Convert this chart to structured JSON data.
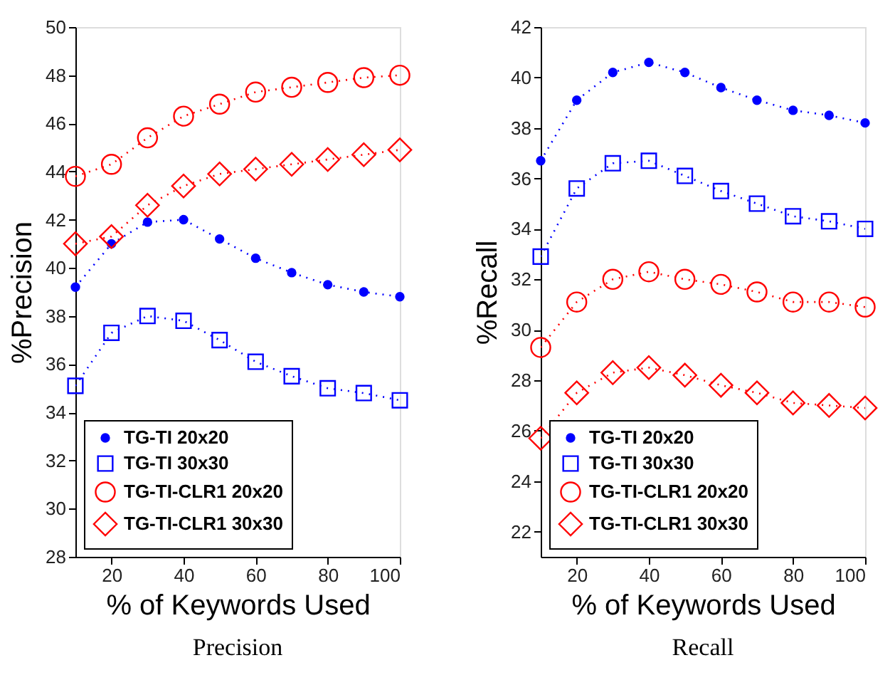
{
  "chart_data": [
    {
      "type": "line",
      "title": "Precision",
      "xlabel": "% of Keywords Used",
      "ylabel": "%Precision",
      "x": [
        10,
        20,
        30,
        40,
        50,
        60,
        70,
        80,
        90,
        100
      ],
      "xlim": [
        10,
        100
      ],
      "xticks": [
        20,
        40,
        60,
        80,
        100
      ],
      "ylim": [
        28,
        50
      ],
      "yticks": [
        28,
        30,
        32,
        34,
        36,
        38,
        40,
        42,
        44,
        46,
        48,
        50
      ],
      "grid": false,
      "legend": "bottom left",
      "line_style": "dotted",
      "series": [
        {
          "name": "TG-TI 20x20",
          "color": "#0000ff",
          "marker": "circle",
          "values": [
            39.2,
            41.0,
            41.9,
            42.0,
            41.2,
            40.4,
            39.8,
            39.3,
            39.0,
            38.8
          ]
        },
        {
          "name": "TG-TI 30x30",
          "color": "#0000ff",
          "marker": "square",
          "values": [
            35.1,
            37.3,
            38.0,
            37.8,
            37.0,
            36.1,
            35.5,
            35.0,
            34.8,
            34.5
          ]
        },
        {
          "name": "TG-TI-CLR1 20x20",
          "color": "#ff0000",
          "marker": "circle",
          "values": [
            43.8,
            44.3,
            45.4,
            46.3,
            46.8,
            47.3,
            47.5,
            47.7,
            47.9,
            48.0
          ]
        },
        {
          "name": "TG-TI-CLR1 30x30",
          "color": "#ff0000",
          "marker": "diamond",
          "values": [
            41.0,
            41.3,
            42.6,
            43.4,
            43.9,
            44.1,
            44.3,
            44.5,
            44.7,
            44.9
          ]
        }
      ]
    },
    {
      "type": "line",
      "title": "Recall",
      "xlabel": "% of Keywords Used",
      "ylabel": "%Recall",
      "x": [
        10,
        20,
        30,
        40,
        50,
        60,
        70,
        80,
        90,
        100
      ],
      "xlim": [
        10,
        100
      ],
      "xticks": [
        20,
        40,
        60,
        80,
        100
      ],
      "ylim": [
        21,
        42
      ],
      "yticks": [
        22,
        24,
        26,
        28,
        30,
        32,
        34,
        36,
        38,
        40,
        42
      ],
      "grid": false,
      "legend": "bottom left",
      "line_style": "dotted",
      "series": [
        {
          "name": "TG-TI 20x20",
          "color": "#0000ff",
          "marker": "circle",
          "values": [
            36.7,
            39.1,
            40.2,
            40.6,
            40.2,
            39.6,
            39.1,
            38.7,
            38.5,
            38.2
          ]
        },
        {
          "name": "TG-TI 30x30",
          "color": "#0000ff",
          "marker": "square",
          "values": [
            32.9,
            35.6,
            36.6,
            36.7,
            36.1,
            35.5,
            35.0,
            34.5,
            34.3,
            34.0
          ]
        },
        {
          "name": "TG-TI-CLR1 20x20",
          "color": "#ff0000",
          "marker": "circle",
          "values": [
            29.3,
            31.1,
            32.0,
            32.3,
            32.0,
            31.8,
            31.5,
            31.1,
            31.1,
            30.9
          ]
        },
        {
          "name": "TG-TI-CLR1 30x30",
          "color": "#ff0000",
          "marker": "diamond",
          "values": [
            25.7,
            27.5,
            28.3,
            28.5,
            28.2,
            27.8,
            27.5,
            27.1,
            27.0,
            26.9
          ]
        }
      ]
    }
  ]
}
